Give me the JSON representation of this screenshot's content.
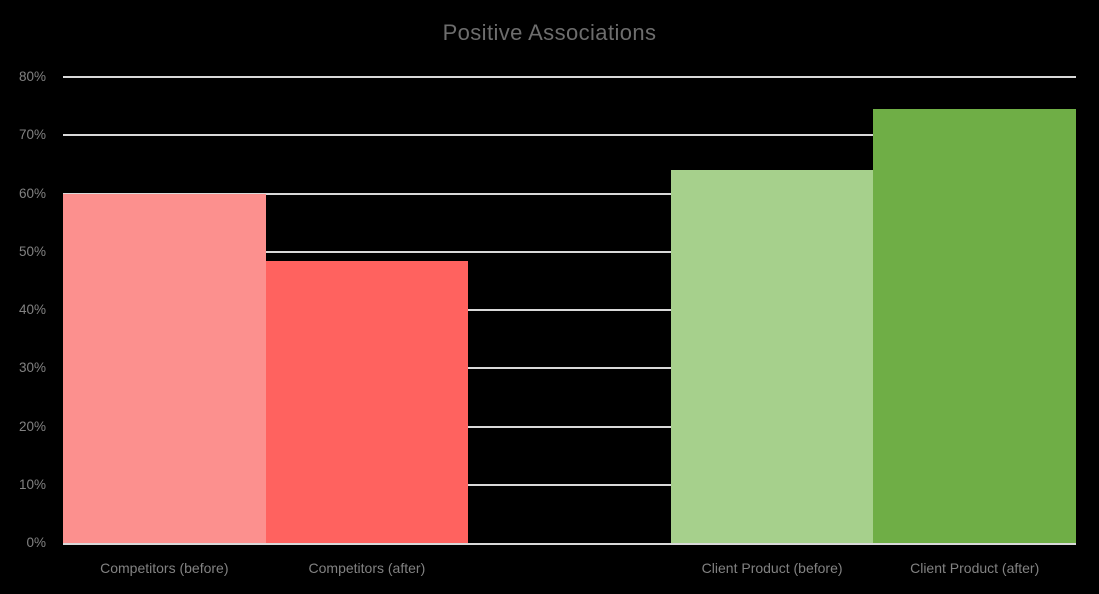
{
  "title": "Positive Associations",
  "chart_data": {
    "type": "bar",
    "title": "Positive Associations",
    "categories": [
      "Competitors (before)",
      "Competitors (after)",
      "Client Product (before)",
      "Client Product (after)"
    ],
    "values": [
      60,
      48.5,
      64,
      74.5
    ],
    "unit": "%",
    "xlabel": "",
    "ylabel": "",
    "ylim": [
      0,
      80
    ],
    "ytick_step": 10,
    "ytick_labels": [
      "0%",
      "10%",
      "20%",
      "30%",
      "40%",
      "50%",
      "60%",
      "70%",
      "80%"
    ],
    "grid": true,
    "legend_position": "none",
    "bar_colors": [
      "#FC908E",
      "#FF625F",
      "#A6D08C",
      "#6FAE46"
    ],
    "slot_indices": [
      0,
      1,
      3,
      4
    ],
    "slots_total": 5
  },
  "colors": {
    "background": "#000000",
    "gridline": "#D9D9D9",
    "axis_label": "#828282",
    "title": "#6D6D6D"
  }
}
